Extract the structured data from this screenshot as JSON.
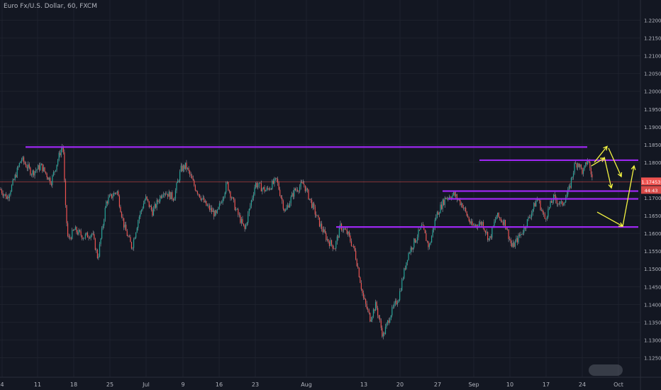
{
  "chart_title": "Euro Fx/U.S. Dollar, 60, FXCM",
  "colors": {
    "background": "#131722",
    "grid": "#1e222d",
    "candle_up": "#26a69a",
    "candle_down": "#ef5350",
    "wick": "#b2b5be",
    "level_line": "#9c27f0",
    "arrow": "#f5f542",
    "price_tag": "#ef5350",
    "axis_text": "#b2b5be"
  },
  "chart_data": {
    "type": "candlestick",
    "title": "Euro Fx/U.S. Dollar, 60, FXCM",
    "ylim": [
      1.1225,
      1.2225
    ],
    "y_ticks": [
      "1.22000",
      "1.21500",
      "1.21000",
      "1.20500",
      "1.20000",
      "1.19500",
      "1.19000",
      "1.18500",
      "1.18000",
      "1.17500",
      "1.17000",
      "1.16500",
      "1.16000",
      "1.15500",
      "1.15000",
      "1.14500",
      "1.14000",
      "1.13500",
      "1.13000",
      "1.12500"
    ],
    "x_ticks": [
      "4",
      "11",
      "18",
      "25",
      "Jul",
      "9",
      "16",
      "23",
      "Aug",
      "13",
      "20",
      "27",
      "Sep",
      "10",
      "17",
      "24",
      "Oct"
    ],
    "price_path": [
      [
        0,
        1.1725
      ],
      [
        10,
        1.17
      ],
      [
        18,
        1.174
      ],
      [
        30,
        1.181
      ],
      [
        45,
        1.177
      ],
      [
        58,
        1.179
      ],
      [
        72,
        1.1745
      ],
      [
        85,
        1.183
      ],
      [
        89,
        1.185
      ],
      [
        92,
        1.168
      ],
      [
        96,
        1.158
      ],
      [
        105,
        1.161
      ],
      [
        118,
        1.159
      ],
      [
        130,
        1.16
      ],
      [
        138,
        1.153
      ],
      [
        150,
        1.169
      ],
      [
        165,
        1.172
      ],
      [
        175,
        1.162
      ],
      [
        186,
        1.156
      ],
      [
        195,
        1.164
      ],
      [
        205,
        1.17
      ],
      [
        215,
        1.166
      ],
      [
        230,
        1.172
      ],
      [
        245,
        1.17
      ],
      [
        255,
        1.178
      ],
      [
        262,
        1.179
      ],
      [
        275,
        1.173
      ],
      [
        290,
        1.168
      ],
      [
        305,
        1.165
      ],
      [
        320,
        1.174
      ],
      [
        332,
        1.167
      ],
      [
        345,
        1.161
      ],
      [
        360,
        1.174
      ],
      [
        375,
        1.172
      ],
      [
        390,
        1.175
      ],
      [
        402,
        1.166
      ],
      [
        415,
        1.172
      ],
      [
        428,
        1.174
      ],
      [
        440,
        1.168
      ],
      [
        450,
        1.163
      ],
      [
        462,
        1.158
      ],
      [
        472,
        1.156
      ],
      [
        480,
        1.162
      ],
      [
        490,
        1.16
      ],
      [
        500,
        1.155
      ],
      [
        505,
        1.15
      ],
      [
        512,
        1.142
      ],
      [
        522,
        1.136
      ],
      [
        530,
        1.14
      ],
      [
        540,
        1.131
      ],
      [
        550,
        1.137
      ],
      [
        562,
        1.142
      ],
      [
        575,
        1.154
      ],
      [
        585,
        1.158
      ],
      [
        595,
        1.162
      ],
      [
        605,
        1.156
      ],
      [
        615,
        1.165
      ],
      [
        628,
        1.17
      ],
      [
        640,
        1.171
      ],
      [
        652,
        1.168
      ],
      [
        665,
        1.162
      ],
      [
        680,
        1.163
      ],
      [
        690,
        1.158
      ],
      [
        700,
        1.165
      ],
      [
        712,
        1.163
      ],
      [
        722,
        1.156
      ],
      [
        735,
        1.16
      ],
      [
        745,
        1.164
      ],
      [
        758,
        1.17
      ],
      [
        768,
        1.164
      ],
      [
        780,
        1.17
      ],
      [
        792,
        1.168
      ],
      [
        802,
        1.172
      ],
      [
        810,
        1.179
      ],
      [
        815,
        1.18
      ],
      [
        822,
        1.177
      ],
      [
        829,
        1.181
      ],
      [
        836,
        1.1745
      ]
    ],
    "last_price": "1.17453",
    "countdown": "44:43",
    "horizontal_levels": [
      {
        "price": 1.1843,
        "from": 36,
        "to": 828
      },
      {
        "price": 1.1806,
        "from": 676,
        "to": 900
      },
      {
        "price": 1.1719,
        "from": 624,
        "to": 900
      },
      {
        "price": 1.1697,
        "from": 632,
        "to": 900
      },
      {
        "price": 1.1618,
        "from": 474,
        "to": 900
      }
    ],
    "ref_line_price": 1.17453,
    "projection_arrows": [
      {
        "from": [
          834,
          1.179
        ],
        "to": [
          852,
          1.1812
        ]
      },
      {
        "from": [
          838,
          1.18
        ],
        "to": [
          856,
          1.1845
        ]
      },
      {
        "from": [
          852,
          1.1815
        ],
        "to": [
          862,
          1.1728
        ]
      },
      {
        "from": [
          858,
          1.184
        ],
        "to": [
          876,
          1.176
        ]
      },
      {
        "from": [
          842,
          1.166
        ],
        "to": [
          878,
          1.162
        ]
      },
      {
        "from": [
          878,
          1.162
        ],
        "to": [
          894,
          1.179
        ]
      }
    ],
    "x_tick_positions": [
      3,
      53,
      104,
      155,
      206,
      258,
      309,
      360,
      432,
      513,
      564,
      617,
      668,
      719,
      770,
      821,
      872
    ]
  }
}
